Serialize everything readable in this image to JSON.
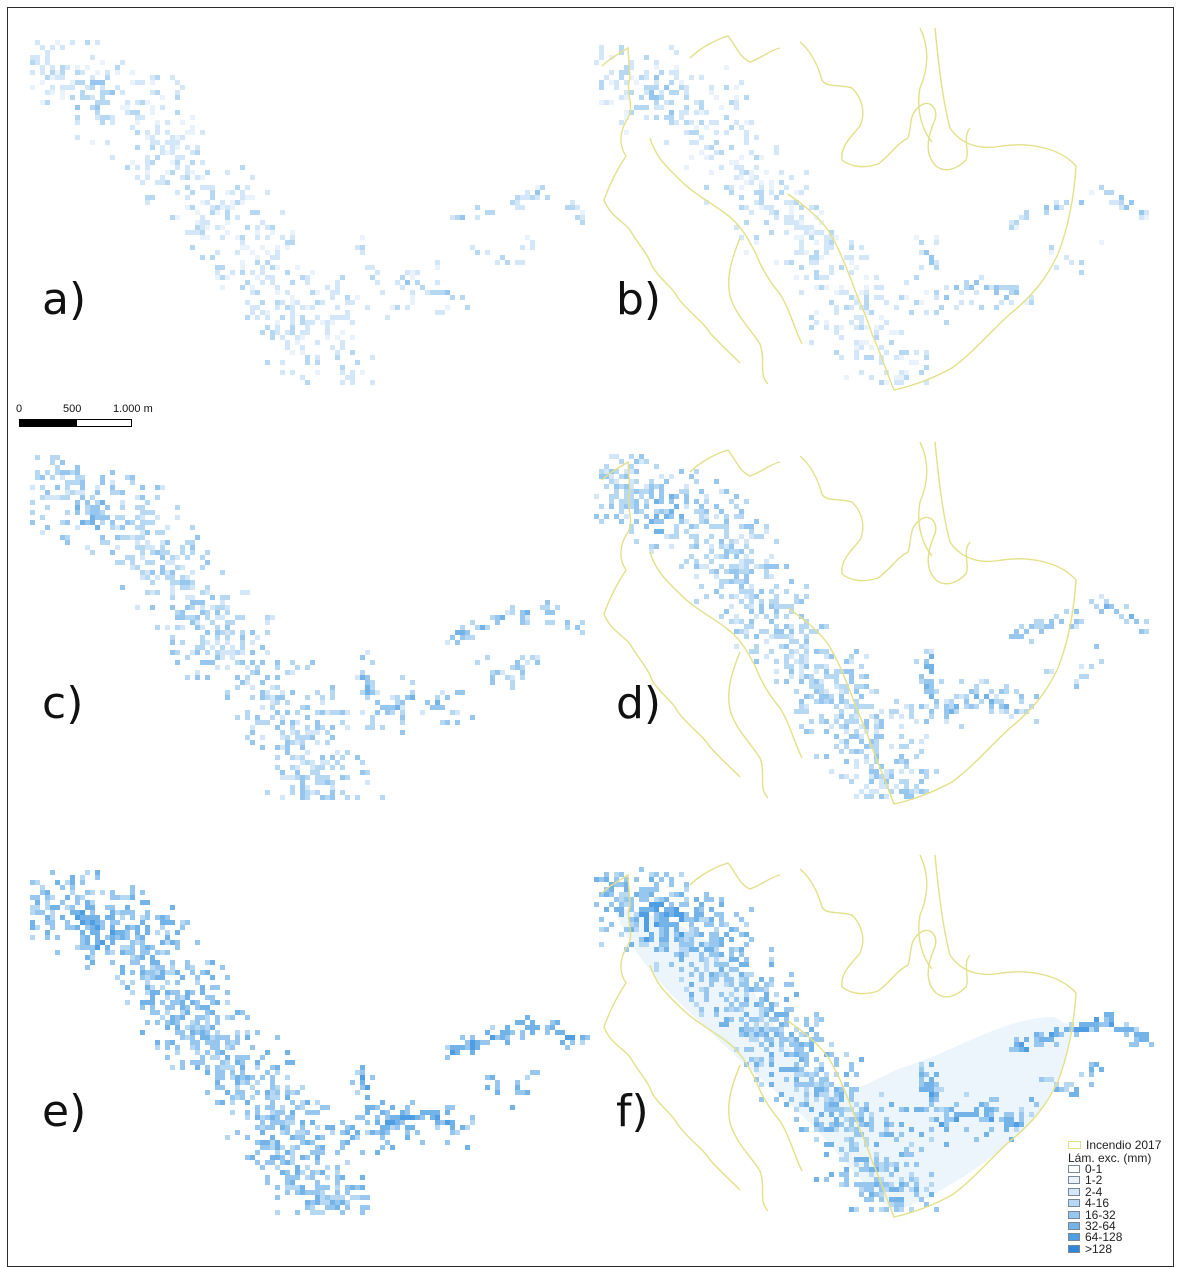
{
  "panels": [
    {
      "id": "a",
      "label": "a)",
      "with_fire_perimeter": false,
      "intensity": 1,
      "smooth_fill": false
    },
    {
      "id": "b",
      "label": "b)",
      "with_fire_perimeter": true,
      "intensity": 1,
      "smooth_fill": false
    },
    {
      "id": "c",
      "label": "c)",
      "with_fire_perimeter": false,
      "intensity": 2,
      "smooth_fill": false
    },
    {
      "id": "d",
      "label": "d)",
      "with_fire_perimeter": true,
      "intensity": 2,
      "smooth_fill": false
    },
    {
      "id": "e",
      "label": "e)",
      "with_fire_perimeter": false,
      "intensity": 3,
      "smooth_fill": false
    },
    {
      "id": "f",
      "label": "f)",
      "with_fire_perimeter": true,
      "intensity": 3,
      "smooth_fill": true
    }
  ],
  "scale_bar": {
    "tick_0": "0",
    "tick_1": "500",
    "tick_2": "1.000 m"
  },
  "legend": {
    "fire_label": "Incendio 2017",
    "title": "Lám. exc. (mm)",
    "classes": [
      {
        "label": "0-1",
        "color": "#ffffff"
      },
      {
        "label": "1-2",
        "color": "#eaf3fc"
      },
      {
        "label": "2-4",
        "color": "#d3e7f8"
      },
      {
        "label": "4-16",
        "color": "#b7d8f3"
      },
      {
        "label": "16-32",
        "color": "#97c7ee"
      },
      {
        "label": "32-64",
        "color": "#74b3e8"
      },
      {
        "label": "64-128",
        "color": "#4f9de2"
      },
      {
        "label": ">128",
        "color": "#2e86dc"
      }
    ]
  },
  "colors": {
    "fire_perimeter": "#e3e08a",
    "frame": "#2a2a2a",
    "label": "#111111"
  }
}
